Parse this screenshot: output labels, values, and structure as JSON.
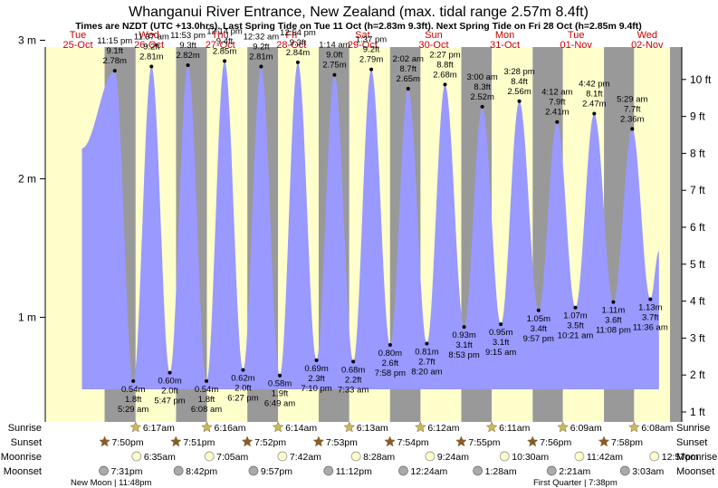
{
  "chart_data": {
    "type": "area",
    "title": "Whanganui River Entrance, New Zealand (max. tidal range 2.57m 8.4ft)",
    "subtitle": "Times are NZDT (UTC +13.0hrs). Last Spring Tide on Tue 11 Oct (h=2.83m 9.3ft). Next Spring Tide on Fri 28 Oct (h=2.85m 9.4ft)",
    "ylabel_left": "m",
    "ylabel_right": "ft",
    "y_ticks_m": [
      "1 m",
      "2 m",
      "3 m"
    ],
    "y_ticks_ft": [
      "1 ft",
      "2 ft",
      "3 ft",
      "4 ft",
      "5 ft",
      "6 ft",
      "7 ft",
      "8 ft",
      "9 ft",
      "10 ft"
    ],
    "days": [
      {
        "dow": "Tue",
        "date": "25-Oct"
      },
      {
        "dow": "Wed",
        "date": "26-Oct"
      },
      {
        "dow": "Thu",
        "date": "27-Oct"
      },
      {
        "dow": "Fri",
        "date": "28-Oct"
      },
      {
        "dow": "Sat",
        "date": "29-Oct"
      },
      {
        "dow": "Sun",
        "date": "30-Oct"
      },
      {
        "dow": "Mon",
        "date": "31-Oct"
      },
      {
        "dow": "Tue",
        "date": "01-Nov"
      },
      {
        "dow": "Wed",
        "date": "02-Nov"
      }
    ],
    "tides": [
      {
        "type": "high",
        "time": "11:15 pm",
        "m": 2.78,
        "ft": "9.1 ft",
        "hours": 23.25
      },
      {
        "type": "low",
        "time": "5:29 am",
        "m": 0.54,
        "ft": "1.8 ft",
        "hours": 29.48
      },
      {
        "type": "high",
        "time": "11:37 am",
        "m": 2.81,
        "ft": "9.2 ft",
        "hours": 35.62
      },
      {
        "type": "low",
        "time": "5:47 pm",
        "m": 0.6,
        "ft": "2.0 ft",
        "hours": 41.78
      },
      {
        "type": "high",
        "time": "11:53 pm",
        "m": 2.82,
        "ft": "9.3 ft",
        "hours": 47.88
      },
      {
        "type": "low",
        "time": "6:08 am",
        "m": 0.54,
        "ft": "1.8 ft",
        "hours": 54.13
      },
      {
        "type": "high",
        "time": "12:14 pm",
        "m": 2.85,
        "ft": "9.4 ft",
        "hours": 60.23
      },
      {
        "type": "low",
        "time": "6:27 pm",
        "m": 0.62,
        "ft": "2.0 ft",
        "hours": 66.45
      },
      {
        "type": "high",
        "time": "12:32 am",
        "m": 2.81,
        "ft": "9.2 ft",
        "hours": 72.53
      },
      {
        "type": "low",
        "time": "6:49 am",
        "m": 0.58,
        "ft": "1.9 ft",
        "hours": 78.82
      },
      {
        "type": "high",
        "time": "12:54 pm",
        "m": 2.84,
        "ft": "9.3 ft",
        "hours": 84.9
      },
      {
        "type": "low",
        "time": "7:10 pm",
        "m": 0.69,
        "ft": "2.3 ft",
        "hours": 91.17
      },
      {
        "type": "high",
        "time": "1:14 am",
        "m": 2.75,
        "ft": "9.0 ft",
        "hours": 97.23
      },
      {
        "type": "low",
        "time": "7:33 am",
        "m": 0.68,
        "ft": "2.2 ft",
        "hours": 103.55
      },
      {
        "type": "high",
        "time": "1:37 pm",
        "m": 2.79,
        "ft": "9.2 ft",
        "hours": 109.62
      },
      {
        "type": "low",
        "time": "7:58 pm",
        "m": 0.8,
        "ft": "2.6 ft",
        "hours": 115.97
      },
      {
        "type": "high",
        "time": "2:02 am",
        "m": 2.65,
        "ft": "8.7 ft",
        "hours": 122.03
      },
      {
        "type": "low",
        "time": "8:20 am",
        "m": 0.81,
        "ft": "2.7 ft",
        "hours": 128.33
      },
      {
        "type": "high",
        "time": "2:27 pm",
        "m": 2.68,
        "ft": "8.8 ft",
        "hours": 134.45
      },
      {
        "type": "low",
        "time": "8:53 pm",
        "m": 0.93,
        "ft": "3.1 ft",
        "hours": 140.88
      },
      {
        "type": "high",
        "time": "3:00 am",
        "m": 2.52,
        "ft": "8.3 ft",
        "hours": 147.0
      },
      {
        "type": "low",
        "time": "9:15 am",
        "m": 0.95,
        "ft": "3.1 ft",
        "hours": 153.25
      },
      {
        "type": "high",
        "time": "3:28 pm",
        "m": 2.56,
        "ft": "8.4 ft",
        "hours": 159.47
      },
      {
        "type": "low",
        "time": "9:57 pm",
        "m": 1.05,
        "ft": "3.4 ft",
        "hours": 165.95
      },
      {
        "type": "high",
        "time": "4:12 am",
        "m": 2.41,
        "ft": "7.9 ft",
        "hours": 172.2
      },
      {
        "type": "low",
        "time": "10:21 am",
        "m": 1.07,
        "ft": "3.5 ft",
        "hours": 178.35
      },
      {
        "type": "high",
        "time": "4:42 pm",
        "m": 2.47,
        "ft": "8.1 ft",
        "hours": 184.7
      },
      {
        "type": "low",
        "time": "11:08 pm",
        "m": 1.11,
        "ft": "3.6 ft",
        "hours": 191.13
      },
      {
        "type": "high",
        "time": "5:29 am",
        "m": 2.36,
        "ft": "7.7 ft",
        "hours": 197.48
      },
      {
        "type": "low",
        "time": "11:36 am",
        "m": 1.13,
        "ft": "3.7 ft",
        "hours": 203.6
      }
    ],
    "sunrise": [
      "6:17am",
      "6:16am",
      "6:14am",
      "6:13am",
      "6:12am",
      "6:11am",
      "6:09am",
      "6:08am"
    ],
    "sunset": [
      "7:50pm",
      "7:51pm",
      "7:52pm",
      "7:53pm",
      "7:54pm",
      "7:55pm",
      "7:56pm",
      "7:58pm"
    ],
    "moonrise": [
      "6:35am",
      "7:05am",
      "7:42am",
      "8:28am",
      "9:24am",
      "10:30am",
      "11:42am",
      "12:57pm"
    ],
    "moonset": [
      "7:31pm",
      "8:42pm",
      "9:57pm",
      "11:12pm",
      "12:24am",
      "1:28am",
      "2:21am",
      "3:03am"
    ],
    "row_labels": {
      "sunrise": "Sunrise",
      "sunset": "Sunset",
      "moonrise": "Moonrise",
      "moonset": "Moonset"
    },
    "moon_phases": [
      "New Moon | 11:48pm",
      "First Quarter | 7:38pm"
    ],
    "colors": {
      "day_bg": "#ffffcc",
      "night_bg": "#999999",
      "water": "#9999ff",
      "sun_icon": "#ccb85a",
      "sunset_icon": "#8b5a2b",
      "moonrise_icon": "#ffffcc",
      "moonset_icon": "#aaaaaa",
      "date_text": "#cc0000"
    }
  }
}
